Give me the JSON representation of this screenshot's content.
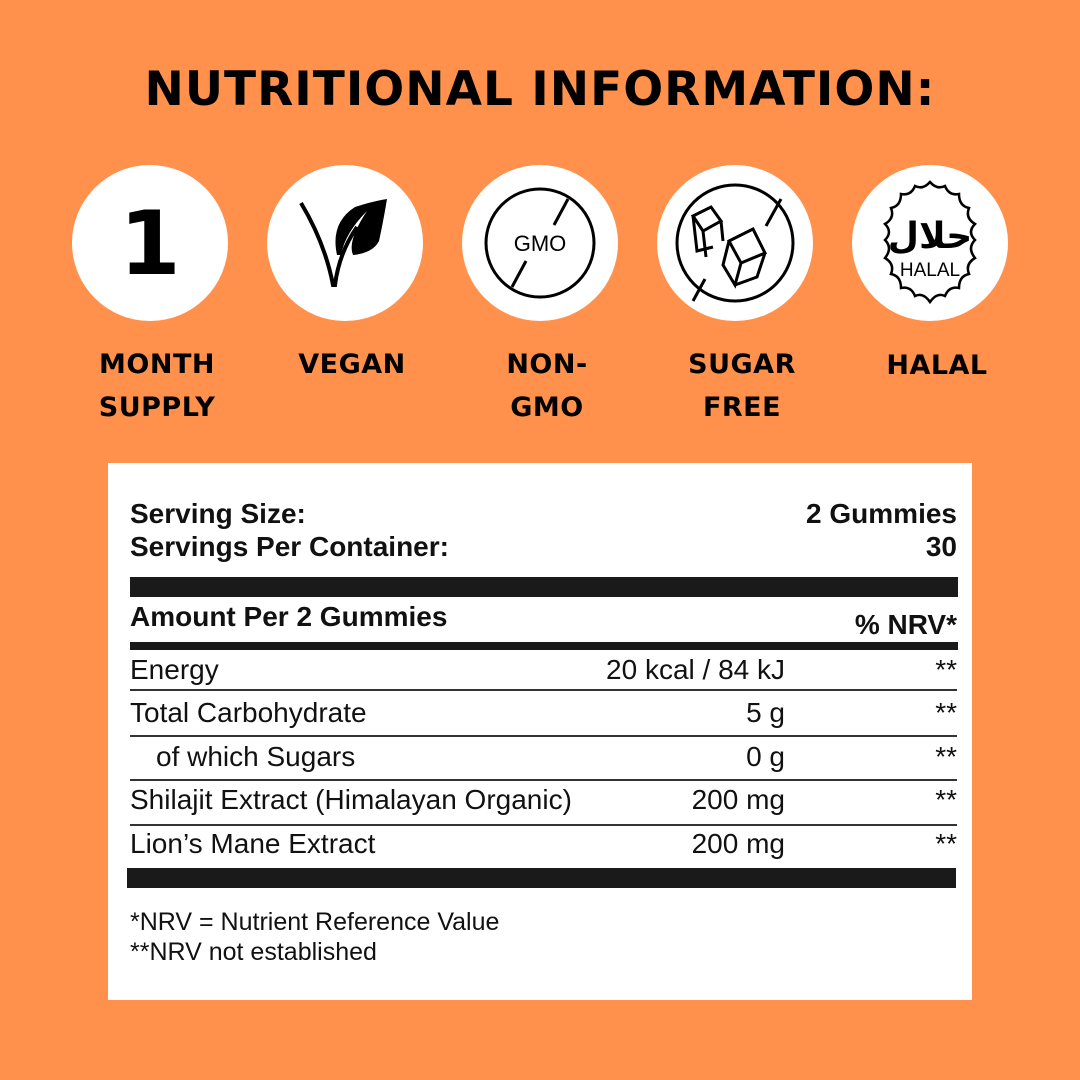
{
  "title": "NUTRITIONAL INFORMATION:",
  "badges": [
    {
      "icon": "number-one-icon",
      "symbol": "1",
      "label1": "MONTH",
      "label2": "SUPPLY"
    },
    {
      "icon": "vegan-leaf-icon",
      "label1": "VEGAN",
      "label2": ""
    },
    {
      "icon": "no-gmo-icon",
      "text": "GMO",
      "label1": "NON-",
      "label2": "GMO"
    },
    {
      "icon": "no-sugar-cubes-icon",
      "label1": "SUGAR",
      "label2": "FREE"
    },
    {
      "icon": "halal-seal-icon",
      "text": "HALAL",
      "arabic": "حلال",
      "label1": "HALAL",
      "label2": ""
    }
  ],
  "panel": {
    "serving_size_label": "Serving Size:",
    "serving_size_value": "2 Gummies",
    "servings_label": "Servings Per Container:",
    "servings_value": "30",
    "amount_header": "Amount Per 2 Gummies",
    "nrv_header": "% NRV*",
    "rows": [
      {
        "name": "Energy",
        "amount": "20 kcal / 84 kJ",
        "nrv": "**"
      },
      {
        "name": "Total Carbohydrate",
        "amount": "5 g",
        "nrv": "**"
      },
      {
        "name": "of which Sugars",
        "amount": "0 g",
        "nrv": "**"
      },
      {
        "name": "Shilajit Extract (Himalayan Organic)",
        "amount": "200 mg",
        "nrv": "**"
      },
      {
        "name": "Lion’s Mane Extract",
        "amount": "200 mg",
        "nrv": "**"
      }
    ],
    "footnote1": "*NRV = Nutrient Reference Value",
    "footnote2": "**NRV not established"
  },
  "colors": {
    "background": "#FF914D",
    "panel": "#FFFFFF",
    "ink": "#111111"
  }
}
